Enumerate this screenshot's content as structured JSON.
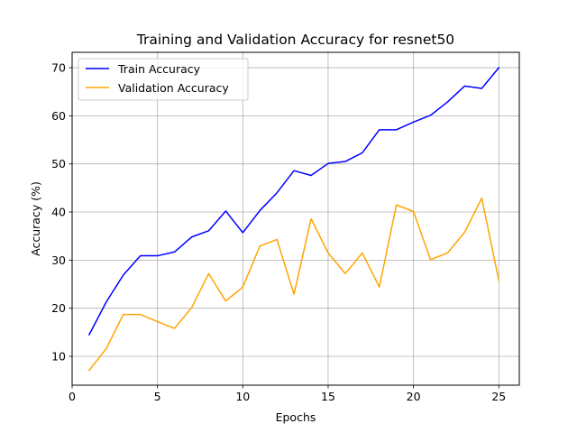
{
  "chart_data": {
    "type": "line",
    "title": "Training and Validation Accuracy for resnet50",
    "xlabel": "Epochs",
    "ylabel": "Accuracy (%)",
    "x": [
      1,
      2,
      3,
      4,
      5,
      6,
      7,
      8,
      9,
      10,
      11,
      12,
      13,
      14,
      15,
      16,
      17,
      18,
      19,
      20,
      21,
      22,
      23,
      24,
      25
    ],
    "xlim": [
      0,
      26.2
    ],
    "ylim": [
      4,
      73.2
    ],
    "xticks": [
      0,
      5,
      10,
      15,
      20,
      25
    ],
    "yticks": [
      10,
      20,
      30,
      40,
      50,
      60,
      70
    ],
    "grid": true,
    "legend_position": "upper-left",
    "series": [
      {
        "name": "Train Accuracy",
        "color": "#0000ff",
        "values": [
          14.5,
          21.3,
          26.9,
          30.9,
          30.9,
          31.7,
          34.8,
          36.1,
          40.2,
          35.7,
          40.3,
          44.0,
          48.6,
          47.6,
          50.1,
          50.5,
          52.3,
          57.1,
          57.1,
          58.7,
          60.1,
          62.9,
          66.2,
          65.7,
          70.0
        ]
      },
      {
        "name": "Validation Accuracy",
        "color": "#ffa500",
        "values": [
          7.1,
          11.6,
          18.7,
          18.7,
          17.2,
          15.8,
          20.1,
          27.2,
          21.5,
          24.4,
          32.9,
          34.3,
          22.9,
          38.6,
          31.5,
          27.2,
          31.5,
          24.4,
          41.5,
          40.1,
          30.1,
          31.5,
          35.8,
          42.9,
          25.8
        ]
      }
    ]
  }
}
